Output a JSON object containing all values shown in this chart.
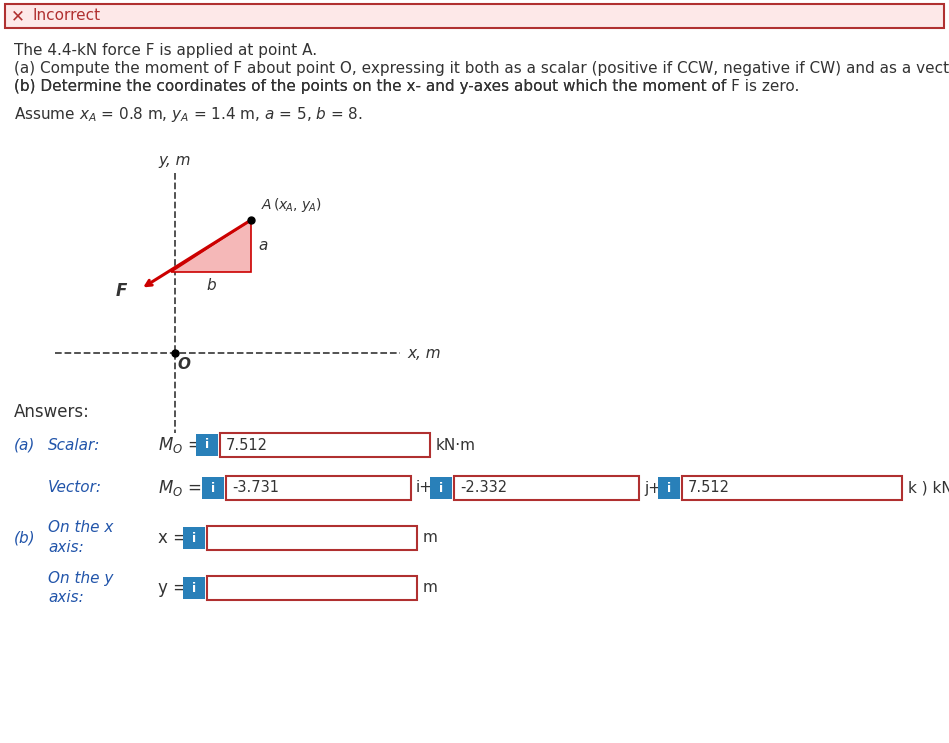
{
  "title_bar_bg": "#fde8e8",
  "title_bar_border": "#b03030",
  "title_x_color": "#b03030",
  "i_btn_color": "#2980b9",
  "i_btn_text": "i",
  "i_btn_text_color": "white",
  "box_border_color": "#b03030",
  "scalar_value": "7.512",
  "scalar_unit": "kN·m",
  "vec_i_value": "-3.731",
  "vec_j_value": "-2.332",
  "vec_k_value": "7.512",
  "dashed_line_color": "#444444",
  "arrow_color": "#cc0000",
  "triangle_fill": "#f5b8b8",
  "triangle_edge": "#cc0000",
  "point_color": "black",
  "text_color": "#333333",
  "label_color": "#2255aa",
  "bg_color": "white",
  "font_size_body": 11,
  "diagram_scale": 95
}
